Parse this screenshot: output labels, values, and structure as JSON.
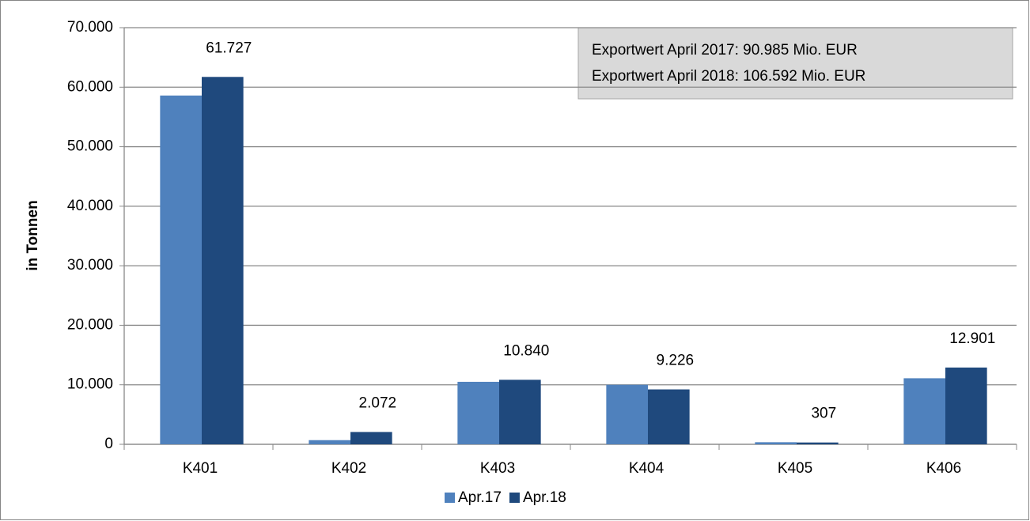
{
  "chart_data": {
    "type": "bar",
    "y_label": "in Tonnen",
    "annotations": [
      "Exportwert April 2017:  90.985 Mio. EUR",
      "Exportwert April 2018:  106.592 Mio. EUR"
    ],
    "categories": [
      "K401",
      "K402",
      "K403",
      "K404",
      "K405",
      "K406"
    ],
    "series": [
      {
        "name": "Apr.17",
        "color": "#4f81bd",
        "values": [
          58600,
          700,
          10500,
          10000,
          350,
          11100
        ]
      },
      {
        "name": "Apr.18",
        "color": "#1f497d",
        "values": [
          61727,
          2072,
          10840,
          9226,
          307,
          12901
        ],
        "value_labels": [
          "61.727",
          "2.072",
          "10.840",
          "9.226",
          "307",
          "12.901"
        ]
      }
    ],
    "ylim": [
      0,
      70000
    ],
    "yticks": [
      0,
      {
        "value": 10000,
        "label": "10.000"
      },
      {
        "value": 20000,
        "label": "20.000"
      },
      {
        "value": 30000,
        "label": "30.000"
      },
      {
        "value": 40000,
        "label": "40.000"
      },
      {
        "value": 50000,
        "label": "50.000"
      },
      {
        "value": 60000,
        "label": "60.000"
      },
      {
        "value": 70000,
        "label": "70.000"
      }
    ],
    "grid": true,
    "legend": "bottom"
  }
}
